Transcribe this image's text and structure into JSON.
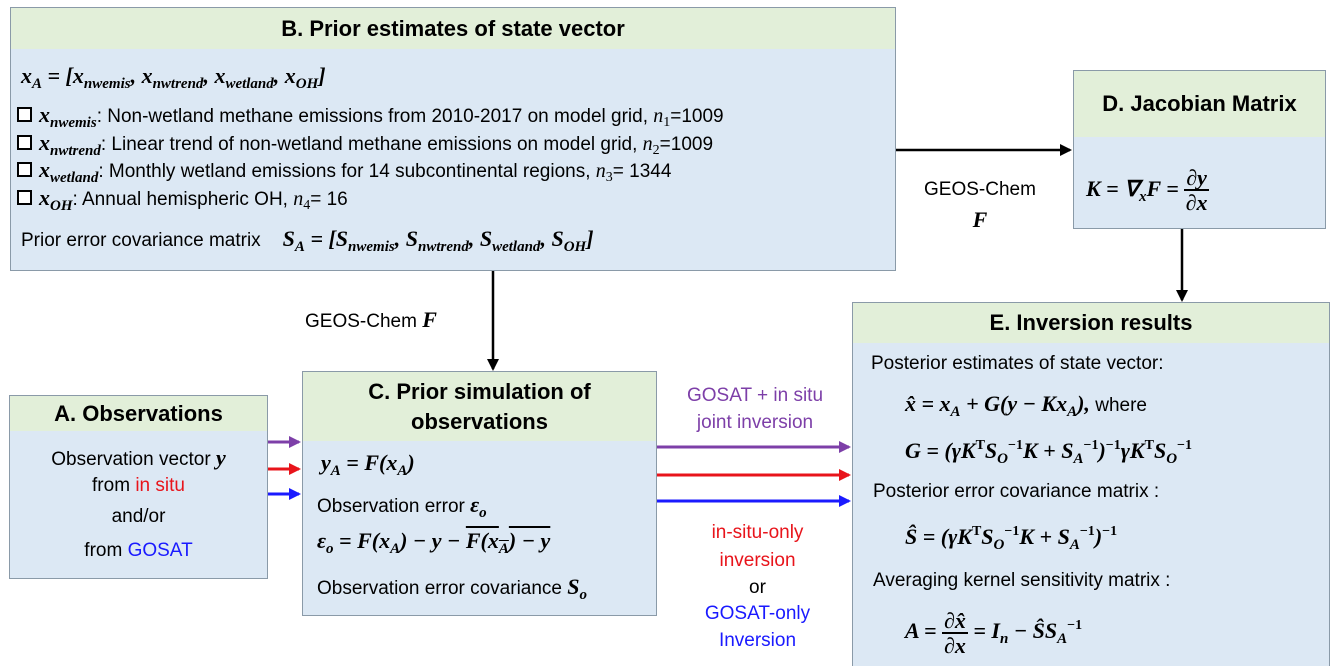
{
  "boxB": {
    "title": "B. Prior estimates of state vector",
    "state": [
      {
        "m": "x"
      },
      {
        "sub": "A"
      },
      {
        "m": " = [x"
      },
      {
        "sub": "nwemis"
      },
      {
        "m": ", x"
      },
      {
        "sub": "nwtrend"
      },
      {
        "m": ", x"
      },
      {
        "sub": "wetland"
      },
      {
        "m": ", x"
      },
      {
        "sub": "OH"
      },
      {
        "m": "]"
      }
    ],
    "items": [
      [
        {
          "m": "x"
        },
        {
          "sub": "nwemis"
        },
        ": Non-wetland methane emissions from 2010-2017 on model grid, ",
        {
          "i": "n"
        },
        {
          "isub": "1"
        },
        "=1009"
      ],
      [
        {
          "m": "x"
        },
        {
          "sub": "nwtrend"
        },
        ": Linear trend of non-wetland methane emissions on model grid, ",
        {
          "i": "n"
        },
        {
          "isub": "2"
        },
        "=1009"
      ],
      [
        {
          "m": "x"
        },
        {
          "sub": "wetland"
        },
        ": Monthly wetland emissions for 14 subcontinental regions, ",
        {
          "i": "n"
        },
        {
          "isub": "3"
        },
        "= 1344"
      ],
      [
        {
          "m": "x"
        },
        {
          "sub": "OH"
        },
        ": Annual hemispheric OH, ",
        {
          "i": "n"
        },
        {
          "isub": "4"
        },
        "= 16"
      ]
    ],
    "covariance": [
      "Prior error covariance matrix",
      {
        "m": "S"
      },
      {
        "sub": "A"
      },
      {
        "m": " = [S"
      },
      {
        "sub": "nwemis"
      },
      {
        "m": ", S"
      },
      {
        "sub": "nwtrend"
      },
      {
        "m": ", S"
      },
      {
        "sub": "wetland"
      },
      {
        "m": ", S"
      },
      {
        "sub": "OH"
      },
      {
        "m": "]"
      }
    ]
  },
  "boxA": {
    "title": "A. Observations",
    "lines": [
      [
        "Observation vector ",
        {
          "m": "y"
        }
      ],
      [
        "from ",
        {
          "red": "in situ"
        }
      ],
      [
        "and/or"
      ],
      [
        "from ",
        {
          "blue": "GOSAT"
        }
      ]
    ]
  },
  "boxC": {
    "title": "C. Prior simulation of observations",
    "lines": [
      [
        {
          "m": "y"
        },
        {
          "sub": "A"
        },
        {
          "m": " = F(x"
        },
        {
          "sub": "A"
        },
        {
          "m": ")"
        }
      ],
      [
        "Observation error ",
        {
          "m": "ε"
        },
        {
          "sub": "o"
        }
      ],
      [
        {
          "m": "ε"
        },
        {
          "sub": "o"
        },
        {
          "m": " = F(x"
        },
        {
          "sub": "A"
        },
        {
          "m": ") − y − "
        },
        {
          "ov": "F(x"
        },
        {
          "ovsub": "A"
        },
        {
          "ov": ") − y"
        }
      ],
      [
        "Observation error covariance ",
        {
          "m": "S"
        },
        {
          "sub": "o"
        }
      ]
    ]
  },
  "boxD": {
    "title": "D. Jacobian Matrix",
    "formula": [
      {
        "m": "K = ∇"
      },
      {
        "sub": "x"
      },
      {
        "m": "F = "
      },
      {
        "num": "∂y",
        "den": "∂x"
      }
    ]
  },
  "boxE": {
    "title": "E. Inversion results",
    "lines": [
      [
        "Posterior estimates of state vector:"
      ],
      [
        {
          "m": "x̂ = x"
        },
        {
          "sub": "A"
        },
        {
          "m": " + G(y − Kx"
        },
        {
          "sub": "A"
        },
        {
          "m": "),"
        },
        " where"
      ],
      [
        {
          "m": "G = (γK"
        },
        {
          "sup": "T"
        },
        {
          "m": "S"
        },
        {
          "sub": "O"
        },
        {
          "sup": "−1"
        },
        {
          "m": "K + S"
        },
        {
          "sub": "A"
        },
        {
          "sup": "−1"
        },
        {
          "m": ")"
        },
        {
          "sup": "−1"
        },
        {
          "m": "γK"
        },
        {
          "sup": "T"
        },
        {
          "m": "S"
        },
        {
          "sub": "O"
        },
        {
          "sup": "−1"
        }
      ],
      [
        "Posterior error covariance matrix :"
      ],
      [
        {
          "m": "Ŝ = (γK"
        },
        {
          "sup": "T"
        },
        {
          "m": "S"
        },
        {
          "sub": "O"
        },
        {
          "sup": "−1"
        },
        {
          "m": "K + S"
        },
        {
          "sub": "A"
        },
        {
          "sup": "−1"
        },
        {
          "m": ")"
        },
        {
          "sup": "−1"
        }
      ],
      [
        "Averaging kernel sensitivity matrix :"
      ],
      [
        {
          "m": "A = "
        },
        {
          "num": "∂x̂",
          "den": "∂x"
        },
        {
          "m": " = I"
        },
        {
          "sub": "n"
        },
        {
          "m": " − ŜS"
        },
        {
          "sub": "A"
        },
        {
          "sup": "−1"
        }
      ]
    ]
  },
  "arrows": {
    "b_to_d": [
      [
        "GEOS-Chem"
      ],
      [
        {
          "m": "F"
        }
      ]
    ],
    "b_to_c": [
      [
        "GEOS-Chem ",
        {
          "m": "F"
        }
      ]
    ],
    "joint": [
      [
        {
          "purple": "GOSAT + in situ"
        }
      ],
      [
        {
          "purple": "joint inversion"
        }
      ]
    ],
    "single": [
      [
        {
          "red": "in-situ-only"
        }
      ],
      [
        {
          "red": "inversion"
        }
      ],
      [
        "or"
      ],
      [
        {
          "blue": "GOSAT-only"
        }
      ],
      [
        {
          "blue": "Inversion"
        }
      ]
    ]
  }
}
